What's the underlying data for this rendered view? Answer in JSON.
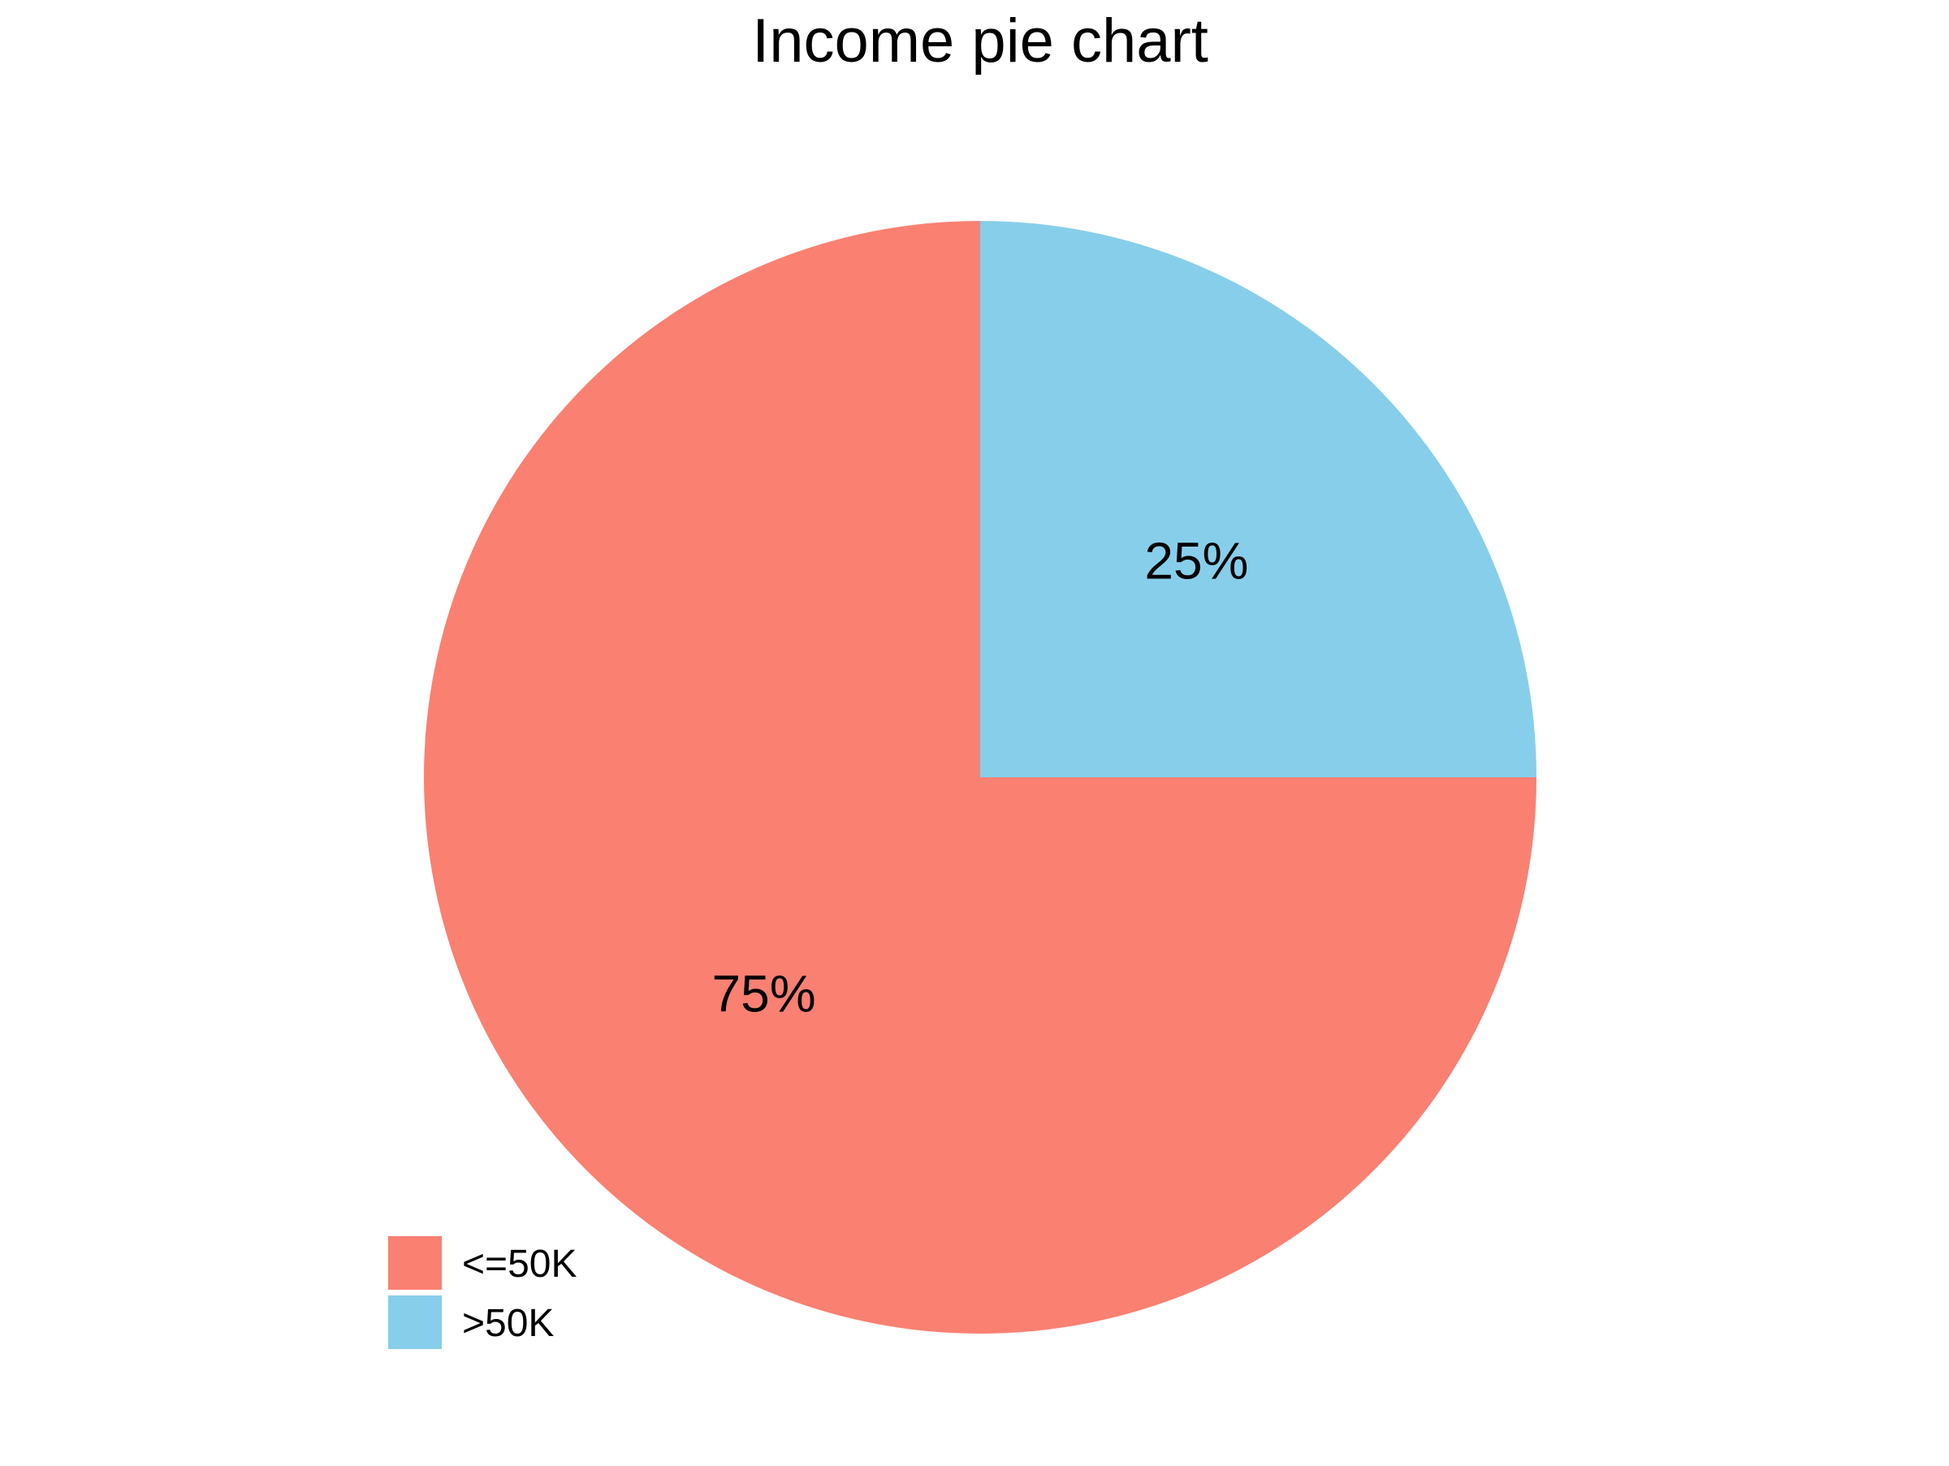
{
  "chart_data": {
    "type": "pie",
    "title": "Income pie chart",
    "slices": [
      {
        "label": "<=50K",
        "value": 75,
        "display": "75%",
        "color": "#FA8072"
      },
      {
        "label": ">50K",
        "value": 25,
        "display": "25%",
        "color": "#87CEEB"
      }
    ],
    "legend": "bottom-left",
    "start_angle": "12 o'clock",
    "direction": "clockwise, >50K first"
  }
}
